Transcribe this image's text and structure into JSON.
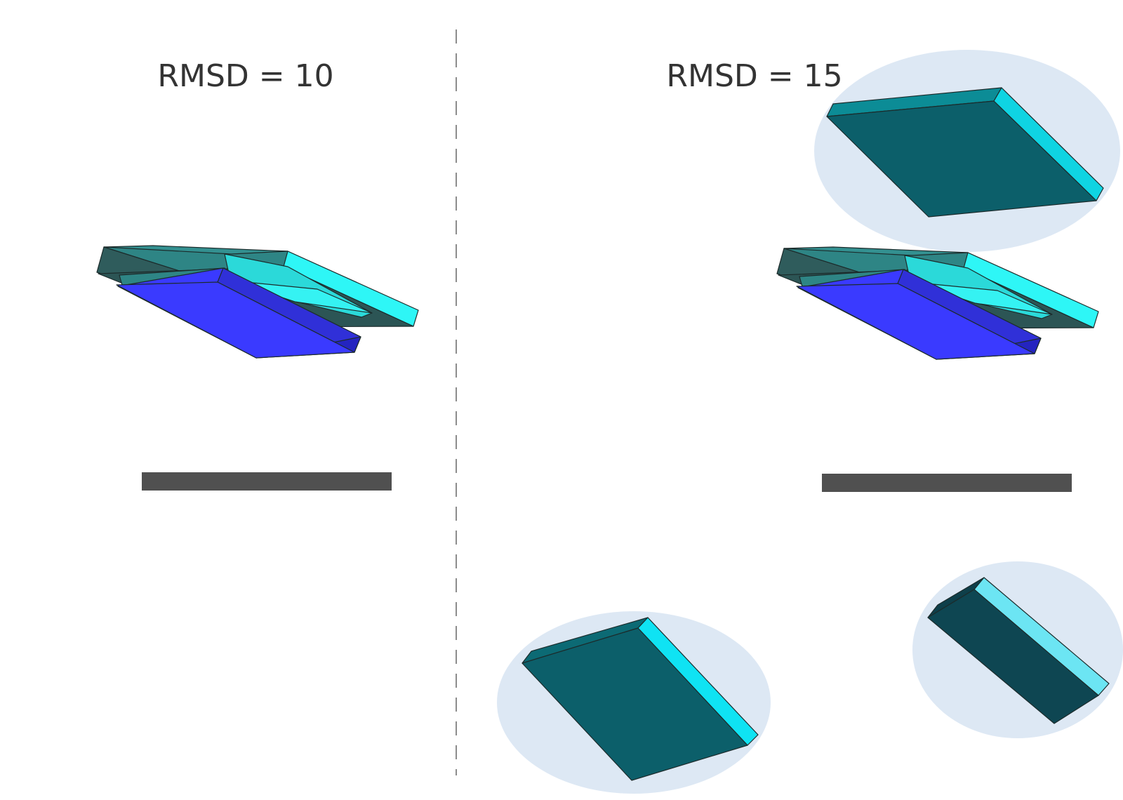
{
  "panels": [
    {
      "title": "RMSD = 10"
    },
    {
      "title": "RMSD = 15"
    }
  ],
  "colors": {
    "background": "#ffffff",
    "divider": "#8c8c8c",
    "title_text": "#333333",
    "scale_bar": "#505050",
    "highlight_ellipse": "#dde8f4",
    "slab_blue_top": "#3a3aff",
    "slab_cyan_side": "#2ef6f6",
    "slab_teal_top": "#339090",
    "slab_dark_teal": "#0c5f6a",
    "slab_bright_cyan": "#0fe3f3",
    "slab_darker_teal": "#0e4652",
    "slab_light_cyan": "#6ce5f3"
  }
}
